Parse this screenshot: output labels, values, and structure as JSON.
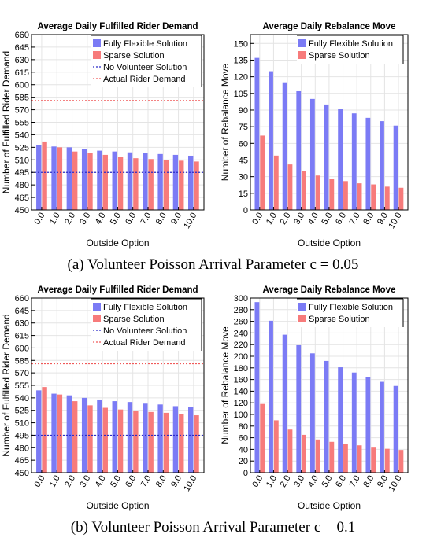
{
  "figure": {
    "caption_a": "(a) Volunteer Poisson Arrival Parameter c = 0.05",
    "caption_b": "(b) Volunteer Poisson Arrival Parameter c = 0.1"
  },
  "colors": {
    "flexible": "#7b7bf5",
    "sparse": "#f77b7b",
    "refline_no_vol": "#2b2bc8",
    "refline_actual": "#f05a5a"
  },
  "chart_data": [
    {
      "id": "a-left",
      "type": "bar",
      "title": "Average Daily Fulfilled Rider Demand",
      "xlabel": "Outside Option",
      "ylabel": "Number of Fulfilled Rider Demand",
      "categories": [
        "0.0",
        "1.0",
        "2.0",
        "3.0",
        "4.0",
        "5.0",
        "6.0",
        "7.0",
        "8.0",
        "9.0",
        "10.0"
      ],
      "ylim": [
        450,
        660
      ],
      "yticks": [
        450,
        465,
        480,
        495,
        510,
        525,
        540,
        555,
        570,
        585,
        600,
        615,
        630,
        645,
        660
      ],
      "series": [
        {
          "name": "Fully Flexible Solution",
          "values": [
            528,
            526,
            525,
            523,
            521,
            520,
            519,
            518,
            517,
            516,
            515
          ]
        },
        {
          "name": "Sparse Solution",
          "values": [
            532,
            525,
            520,
            518,
            516,
            514,
            512,
            511,
            510,
            509,
            508
          ]
        }
      ],
      "reference_lines": [
        {
          "name": "No Volunteer Solution",
          "value": 495,
          "style": "dotted"
        },
        {
          "name": "Actual Rider Demand",
          "value": 581,
          "style": "dotted"
        }
      ],
      "legend": "top-right",
      "grid": true
    },
    {
      "id": "a-right",
      "type": "bar",
      "title": "Average Daily Rebalance Move",
      "xlabel": "Outside Option",
      "ylabel": "Number of Rebalance Move",
      "categories": [
        "0.0",
        "1.0",
        "2.0",
        "3.0",
        "4.0",
        "5.0",
        "6.0",
        "7.0",
        "8.0",
        "9.0",
        "10.0"
      ],
      "ylim": [
        0,
        158
      ],
      "yticks": [
        0,
        15,
        30,
        45,
        60,
        75,
        90,
        105,
        120,
        135,
        150
      ],
      "series": [
        {
          "name": "Fully Flexible Solution",
          "values": [
            137,
            125,
            115,
            107,
            100,
            95,
            91,
            87,
            83,
            80,
            76
          ]
        },
        {
          "name": "Sparse Solution",
          "values": [
            67,
            49,
            41,
            35,
            31,
            28,
            26,
            24,
            23,
            21,
            20
          ]
        }
      ],
      "legend": "top-right",
      "grid": true
    },
    {
      "id": "b-left",
      "type": "bar",
      "title": "Average Daily Fulfilled Rider Demand",
      "xlabel": "Outside Option",
      "ylabel": "Number of Fulfilled Rider Demand",
      "categories": [
        "0.0",
        "1.0",
        "2.0",
        "3.0",
        "4.0",
        "5.0",
        "6.0",
        "7.0",
        "8.0",
        "9.0",
        "10.0"
      ],
      "ylim": [
        450,
        660
      ],
      "yticks": [
        450,
        465,
        480,
        495,
        510,
        525,
        540,
        555,
        570,
        585,
        600,
        615,
        630,
        645,
        660
      ],
      "series": [
        {
          "name": "Fully Flexible Solution",
          "values": [
            549,
            545,
            543,
            540,
            538,
            536,
            535,
            533,
            532,
            530,
            529
          ]
        },
        {
          "name": "Sparse Solution",
          "values": [
            553,
            544,
            536,
            531,
            528,
            526,
            524,
            523,
            522,
            520,
            519
          ]
        }
      ],
      "reference_lines": [
        {
          "name": "No Volunteer Solution",
          "value": 495,
          "style": "dotted"
        },
        {
          "name": "Actual Rider Demand",
          "value": 581,
          "style": "dotted"
        }
      ],
      "legend": "top-right",
      "grid": true
    },
    {
      "id": "b-right",
      "type": "bar",
      "title": "Average Daily Rebalance Move",
      "xlabel": "Outside Option",
      "ylabel": "Number of Rebalance Move",
      "categories": [
        "0.0",
        "1.0",
        "2.0",
        "3.0",
        "4.0",
        "5.0",
        "6.0",
        "7.0",
        "8.0",
        "9.0",
        "10.0"
      ],
      "ylim": [
        0,
        300
      ],
      "yticks": [
        0,
        20,
        40,
        60,
        80,
        100,
        120,
        140,
        160,
        180,
        200,
        220,
        240,
        260,
        280,
        300
      ],
      "series": [
        {
          "name": "Fully Flexible Solution",
          "values": [
            293,
            261,
            237,
            219,
            205,
            192,
            181,
            172,
            164,
            156,
            149
          ]
        },
        {
          "name": "Sparse Solution",
          "values": [
            118,
            90,
            74,
            65,
            57,
            53,
            49,
            47,
            43,
            41,
            39
          ]
        }
      ],
      "legend": "top-right",
      "grid": true
    }
  ]
}
